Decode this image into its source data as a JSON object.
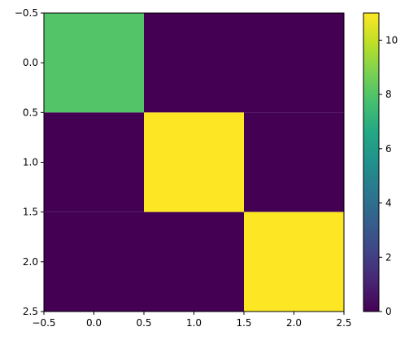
{
  "chart_data": {
    "type": "heatmap",
    "matrix": [
      [
        8,
        0,
        0
      ],
      [
        0,
        11,
        0
      ],
      [
        0,
        0,
        11
      ]
    ],
    "xlim": [
      -0.5,
      2.5
    ],
    "ylim": [
      2.5,
      -0.5
    ],
    "x_ticks": [
      -0.5,
      0.0,
      0.5,
      1.0,
      1.5,
      2.0,
      2.5
    ],
    "x_tick_labels": [
      "−0.5",
      "0.0",
      "0.5",
      "1.0",
      "1.5",
      "2.0",
      "2.5"
    ],
    "y_ticks": [
      -0.5,
      0.0,
      0.5,
      1.0,
      1.5,
      2.0,
      2.5
    ],
    "y_tick_labels": [
      "−0.5",
      "0.0",
      "0.5",
      "1.0",
      "1.5",
      "2.0",
      "2.5"
    ],
    "colorbar": {
      "range": [
        0,
        11
      ],
      "ticks": [
        0,
        2,
        4,
        6,
        8,
        10
      ],
      "tick_labels": [
        "0",
        "2",
        "4",
        "6",
        "8",
        "10"
      ],
      "colormap": "viridis"
    },
    "colors": {
      "viridis_0": "#440154",
      "viridis_8": "#54c568",
      "viridis_11": "#fde725"
    }
  }
}
